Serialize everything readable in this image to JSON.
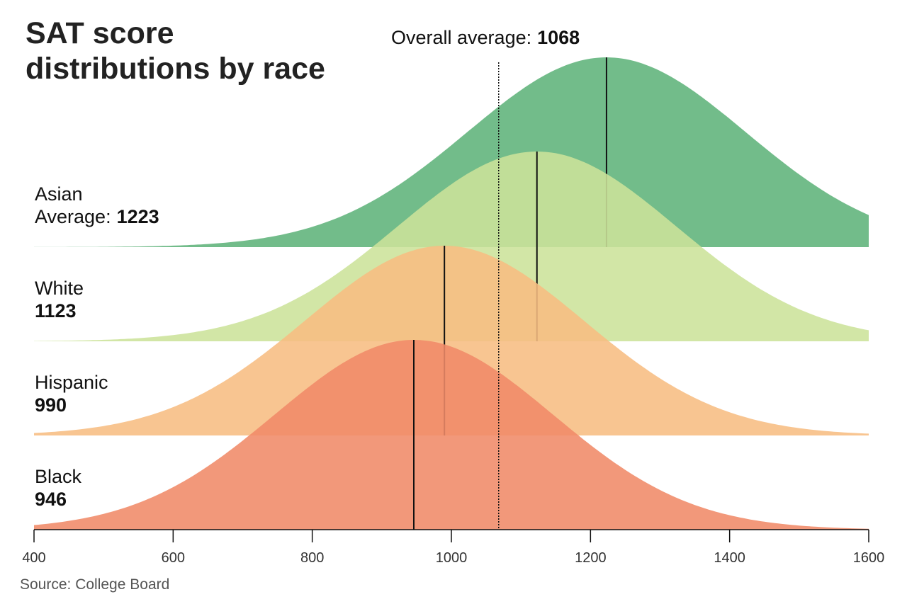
{
  "chart_data": {
    "type": "ridgeline",
    "title": "SAT score distributions by race",
    "source": "Source: College Board",
    "overall_label": "Overall average:",
    "overall_average": 1068,
    "series": [
      {
        "name": "Asian",
        "value_prefix": "Average:",
        "mean": 1223,
        "sd": 200,
        "color": "#5fb37a"
      },
      {
        "name": "White",
        "mean": 1123,
        "sd": 200,
        "color": "#cce39a"
      },
      {
        "name": "Hispanic",
        "mean": 990,
        "sd": 200,
        "color": "#f7bd82"
      },
      {
        "name": "Black",
        "mean": 946,
        "sd": 200,
        "color": "#f08a68"
      }
    ],
    "xlim": [
      400,
      1600
    ],
    "xticks": [
      400,
      600,
      800,
      1000,
      1200,
      1400,
      1600
    ]
  }
}
